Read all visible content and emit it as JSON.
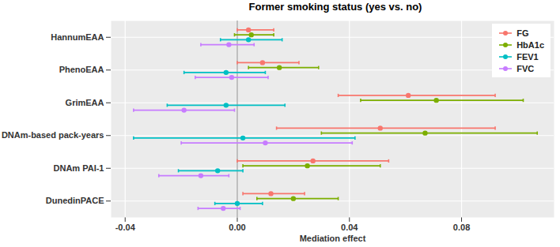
{
  "chart_data": {
    "type": "forest",
    "title": "Former smoking status (yes vs. no)",
    "x_label": "Mediation effect",
    "orientation": "horizontal",
    "grid": true,
    "legend": "top-right",
    "categories": [
      "HannumEAA",
      "PhenoEAA",
      "GrimEAA",
      "DNAm-based pack-years",
      "DNAm PAI-1",
      "DunedinPACE"
    ],
    "xlim": [
      -0.045,
      0.113
    ],
    "xticks": [
      -0.04,
      {
        "value": 0,
        "label": "0.00"
      },
      0.04,
      0.08
    ],
    "series": [
      {
        "name": "FG",
        "color": "#F8766D",
        "values": [
          0.004,
          0.009,
          0.061,
          0.051,
          0.027,
          0.012
        ],
        "lower": [
          0.0,
          0.0,
          0.036,
          0.014,
          0.0,
          0.002
        ],
        "upper": [
          0.013,
          0.022,
          0.092,
          0.092,
          0.054,
          0.024
        ]
      },
      {
        "name": "HbA1c",
        "color": "#7CAE00",
        "values": [
          0.005,
          0.015,
          0.071,
          0.067,
          0.025,
          0.02
        ],
        "lower": [
          -0.001,
          0.004,
          0.044,
          0.03,
          0.002,
          0.007
        ],
        "upper": [
          0.013,
          0.029,
          0.102,
          0.107,
          0.051,
          0.036
        ]
      },
      {
        "name": "FEV1",
        "color": "#00BFC4",
        "values": [
          0.004,
          -0.004,
          -0.004,
          0.002,
          -0.007,
          0.0
        ],
        "lower": [
          -0.006,
          -0.019,
          -0.025,
          -0.037,
          -0.021,
          -0.008
        ],
        "upper": [
          0.016,
          0.01,
          0.017,
          0.042,
          0.002,
          0.009
        ]
      },
      {
        "name": "FVC",
        "color": "#C77CFF",
        "values": [
          -0.003,
          -0.002,
          -0.019,
          0.01,
          -0.013,
          -0.005
        ],
        "lower": [
          -0.013,
          -0.015,
          -0.037,
          -0.02,
          -0.028,
          -0.014
        ],
        "upper": [
          0.006,
          0.011,
          -0.001,
          0.041,
          -0.003,
          0.001
        ]
      }
    ]
  }
}
